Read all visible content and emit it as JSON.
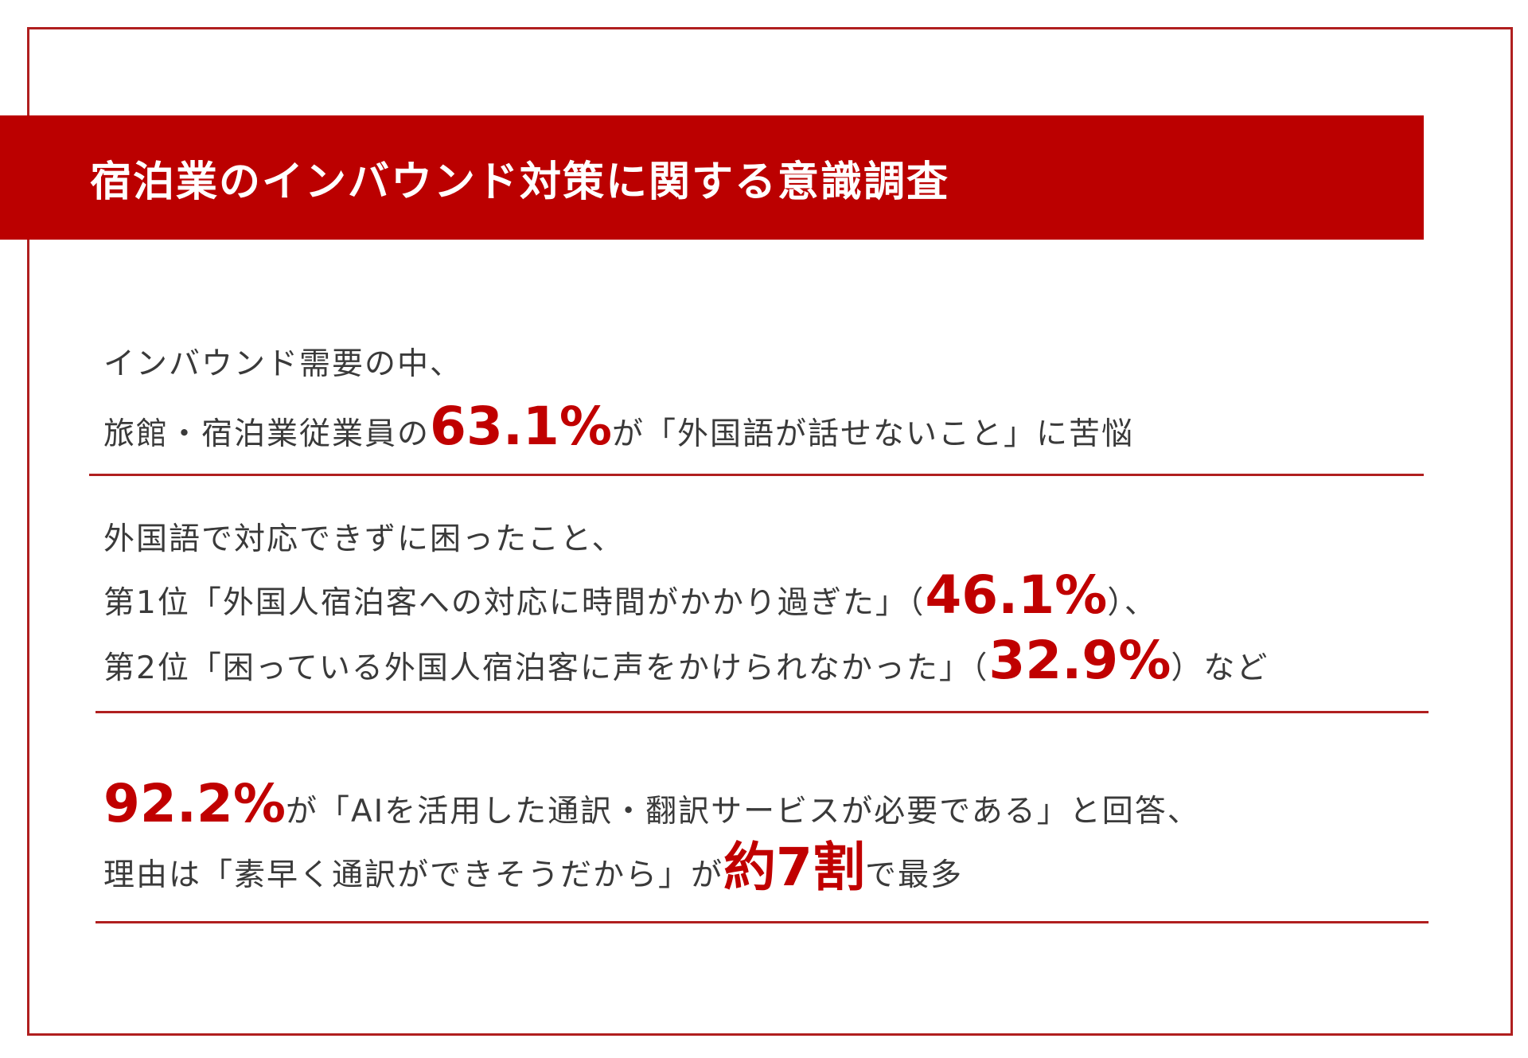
{
  "title": "宿泊業のインバウンド対策に関する意識調査",
  "section1": {
    "line1": "インバウンド需要の中、",
    "line2_pre": "旅館・宿泊業従業員の",
    "line2_hl": "63.1%",
    "line2_post": "が「外国語が話せないこと」に苦悩"
  },
  "section2": {
    "line1": "外国語で対応できずに困ったこと、",
    "line2_pre": "第1位「外国人宿泊客への対応に時間がかかり過ぎた」（",
    "line2_hl": "46.1%",
    "line2_post": "）、",
    "line3_pre": "第2位「困っている外国人宿泊客に声をかけられなかった」（",
    "line3_hl": "32.9%",
    "line3_post": "）など"
  },
  "section3": {
    "line1_hl": "92.2%",
    "line1_post": "が「AIを活用した通訳・翻訳サービスが必要である」と回答、",
    "line2_pre": "理由は「素早く通訳ができそうだから」が",
    "line2_hl": "約7割",
    "line2_post": "で最多"
  },
  "colors": {
    "accent": "#bb0000",
    "highlight": "#c00000",
    "border": "#b01f1f",
    "text": "#3a3a3a"
  }
}
